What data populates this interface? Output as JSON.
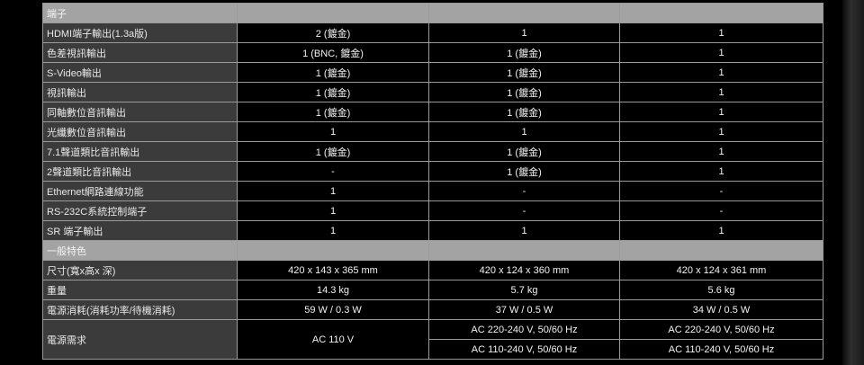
{
  "colors": {
    "section_bg": "#a3a3a3",
    "label_bg": "#3b3b3b",
    "value_bg": "#000000",
    "border": "#9a9a9a"
  },
  "sections": [
    {
      "title": "端子",
      "rows": [
        {
          "label": "HDMI端子輸出(1.3a版)",
          "values": [
            "2 (鍍金)",
            "1",
            "1"
          ]
        },
        {
          "label": "色差視訊輸出",
          "values": [
            "1 (BNC, 鍍金)",
            "1 (鍍金)",
            "1"
          ]
        },
        {
          "label": "S-Video輸出",
          "values": [
            "1 (鍍金)",
            "1 (鍍金)",
            "1"
          ]
        },
        {
          "label": "視訊輸出",
          "values": [
            "1 (鍍金)",
            "1 (鍍金)",
            "1"
          ]
        },
        {
          "label": "同軸數位音訊輸出",
          "values": [
            "1 (鍍金)",
            "1 (鍍金)",
            "1"
          ]
        },
        {
          "label": "光纖數位音訊輸出",
          "values": [
            "1",
            "1",
            "1"
          ]
        },
        {
          "label": "7.1聲道類比音訊輸出",
          "values": [
            "1 (鍍金)",
            "1 (鍍金)",
            "1"
          ]
        },
        {
          "label": "2聲道類比音訊輸出",
          "values": [
            "-",
            "1 (鍍金)",
            "1"
          ]
        },
        {
          "label": "Ethernet網路連線功能",
          "values": [
            "1",
            "-",
            "-"
          ]
        },
        {
          "label": "RS-232C系統控制端子",
          "values": [
            "1",
            "-",
            "-"
          ]
        },
        {
          "label": "SR 端子輸出",
          "values": [
            "1",
            "1",
            "1"
          ]
        }
      ]
    },
    {
      "title": "一般特色",
      "rows": [
        {
          "label": "尺寸(寬x高x 深)",
          "values": [
            "420 x 143 x 365 mm",
            "420 x 124 x 360 mm",
            "420 x 124 x 361 mm"
          ]
        },
        {
          "label": "重量",
          "values": [
            "14.3 kg",
            "5.7 kg",
            "5.6 kg"
          ]
        },
        {
          "label": "電源消耗(消耗功率/待機消耗)",
          "values": [
            "59 W / 0.3 W",
            "37 W / 0.5 W",
            "34 W / 0.5 W"
          ]
        }
      ]
    }
  ],
  "power": {
    "label": "電源需求",
    "col1": "AC 110 V",
    "col2": [
      "AC 220-240 V, 50/60 Hz",
      "AC 110-240 V, 50/60 Hz"
    ],
    "col3": [
      "AC 220-240 V, 50/60 Hz",
      "AC 110-240 V, 50/60 Hz"
    ]
  }
}
